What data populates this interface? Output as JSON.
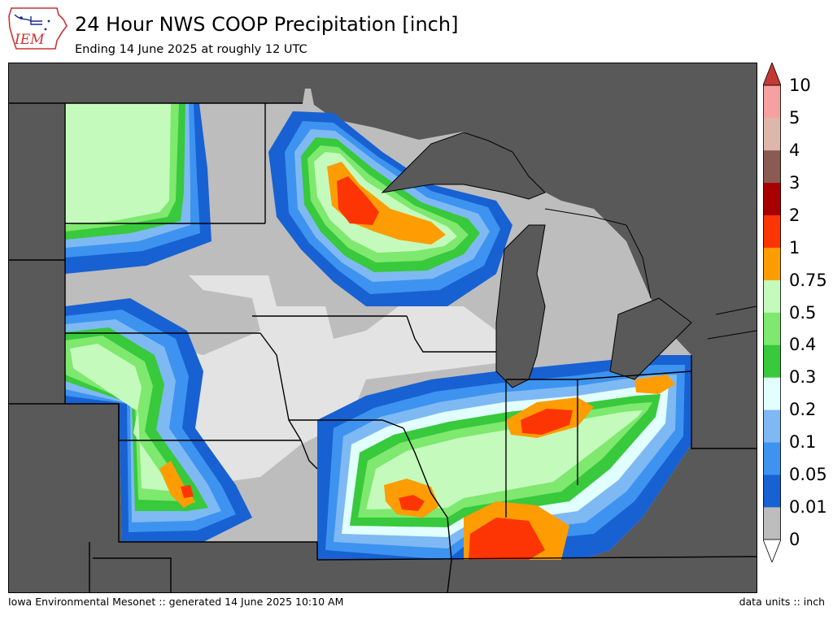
{
  "header": {
    "title": "24 Hour NWS COOP Precipitation [inch]",
    "subtitle": "Ending 14 June 2025 at roughly 12 UTC",
    "logo_text": "IEM"
  },
  "footer": {
    "credit": "Iowa Environmental Mesonet :: generated 14 June 2025 10:10 AM",
    "units": "data units :: inch"
  },
  "map": {
    "type": "precipitation contour map",
    "region": "Upper Midwest",
    "background_color": "#595959",
    "no_data_color": "#595959",
    "max_marker_value": 2
  },
  "colorbar": {
    "under_color": "#ffffff",
    "over_color": "#c23a33",
    "levels": [
      {
        "label": "0",
        "color": "#bdbdbd"
      },
      {
        "label": "0.01",
        "color": "#1761d2"
      },
      {
        "label": "0.05",
        "color": "#3d93ef"
      },
      {
        "label": "0.1",
        "color": "#7fb9f3"
      },
      {
        "label": "0.2",
        "color": "#e2ffff"
      },
      {
        "label": "0.3",
        "color": "#38c93c"
      },
      {
        "label": "0.4",
        "color": "#7ee86f"
      },
      {
        "label": "0.5",
        "color": "#c4fbbc"
      },
      {
        "label": "0.75",
        "color": "#fd9d03"
      },
      {
        "label": "1",
        "color": "#fd3504"
      },
      {
        "label": "2",
        "color": "#a80000"
      },
      {
        "label": "3",
        "color": "#8b5a52"
      },
      {
        "label": "4",
        "color": "#dcb7aa"
      },
      {
        "label": "5",
        "color": "#f6a0a0"
      },
      {
        "label": "10",
        "color": ""
      }
    ]
  }
}
